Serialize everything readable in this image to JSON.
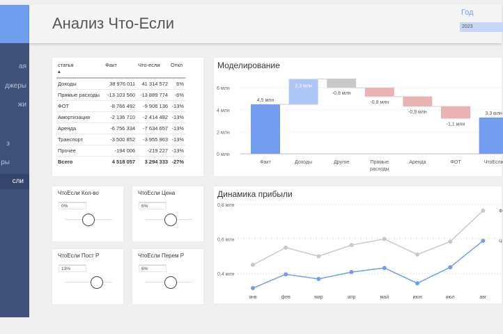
{
  "header": {
    "title": "Анализ Что-Если",
    "year_label": "Год",
    "year_value": "2023"
  },
  "sidebar": {
    "items": [
      "ая",
      "джеры",
      "жи",
      "",
      "з",
      "ры",
      "сли"
    ],
    "active_index": 6
  },
  "table": {
    "headers": [
      "статья",
      "Факт",
      "Что-если",
      "Откл"
    ],
    "rows": [
      [
        "Доходы",
        "38 976 011",
        "41 314 572",
        "6%"
      ],
      [
        "Прямые расходы",
        "-13 103 560",
        "-13 889 774",
        "-6%"
      ],
      [
        "ФОТ",
        "-8 766 492",
        "-9 906 136",
        "-13%"
      ],
      [
        "Амортизация",
        "-2 136 710",
        "-2 414 482",
        "-13%"
      ],
      [
        "Аренда",
        "-6 756 334",
        "-7 634 657",
        "-13%"
      ],
      [
        "Транспорт",
        "-3 500 852",
        "-3 955 963",
        "-13%"
      ],
      [
        "Прочее",
        "-194 006",
        "-219 227",
        "-13%"
      ]
    ],
    "total": [
      "Всего",
      "4 518 057",
      "3 294 333",
      "-27%"
    ]
  },
  "sliders": [
    {
      "title": "ЧтоЕсли Кол-во",
      "value": "0%",
      "level": 0.5
    },
    {
      "title": "ЧтоЕсли Цена",
      "value": "6%",
      "level": 0.55
    },
    {
      "title": "ЧтоЕсли Пост Р",
      "value": "13%",
      "level": 0.67
    },
    {
      "title": "ЧтоЕсли Перем Р",
      "value": "6%",
      "level": 0.55
    }
  ],
  "chart_data": [
    {
      "type": "waterfall",
      "title": "Моделирование",
      "categories": [
        "Факт",
        "Доходы",
        "Другое",
        "Прямые расходы",
        "Аренда",
        "ФОТ",
        "ЧтоЕсли"
      ],
      "values": [
        4.5,
        2.3,
        -0.8,
        -0.8,
        -0.9,
        -1.1,
        3.3
      ],
      "kinds": [
        "total",
        "increase",
        "other",
        "decrease",
        "decrease",
        "decrease",
        "total"
      ],
      "labels": [
        "4,5 млн",
        "2,3 млн",
        "-0,8 млн",
        "-0,8 млн",
        "-0,9 млн",
        "-1,1 млн",
        "3,3 млн"
      ],
      "yticks": [
        "0 млн",
        "2 млн",
        "4 млн",
        "6 млн"
      ],
      "ylim": [
        0,
        7
      ],
      "unit": "млн",
      "colors": {
        "total": "#739ef0",
        "increase": "#adc6f5",
        "other": "#c8c8c8",
        "decrease": "#e9b3b3"
      }
    },
    {
      "type": "line",
      "title": "Динамика прибыли",
      "categories": [
        "янв",
        "фев",
        "мар",
        "апр",
        "май",
        "июн",
        "июл",
        "авг"
      ],
      "series": [
        {
          "name": "Ф",
          "color": "#c6c9cc",
          "values": [
            0.45,
            0.55,
            0.5,
            0.565,
            0.6,
            0.51,
            0.585,
            0.765
          ]
        },
        {
          "name": "Ч",
          "color": "#6f9ef0",
          "values": [
            0.315,
            0.395,
            0.368,
            0.408,
            0.432,
            0.343,
            0.436,
            0.59
          ]
        }
      ],
      "yticks": [
        "0,4 млн",
        "0,6 млн",
        "0,8 млн"
      ],
      "ylim": [
        0.3,
        0.8
      ],
      "grid": true
    }
  ]
}
